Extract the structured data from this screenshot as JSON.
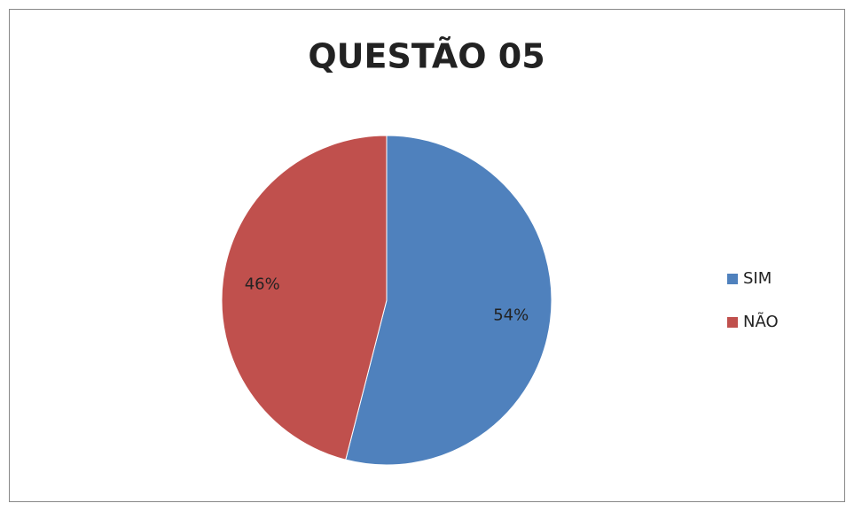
{
  "chart_data": {
    "type": "pie",
    "title": "QUESTÃO 05",
    "categories": [
      "SIM",
      "NÃO"
    ],
    "values": [
      54,
      46
    ],
    "value_labels": [
      "54%",
      "46%"
    ],
    "colors": [
      "#4f81bd",
      "#c0504d"
    ],
    "legend": "right"
  }
}
